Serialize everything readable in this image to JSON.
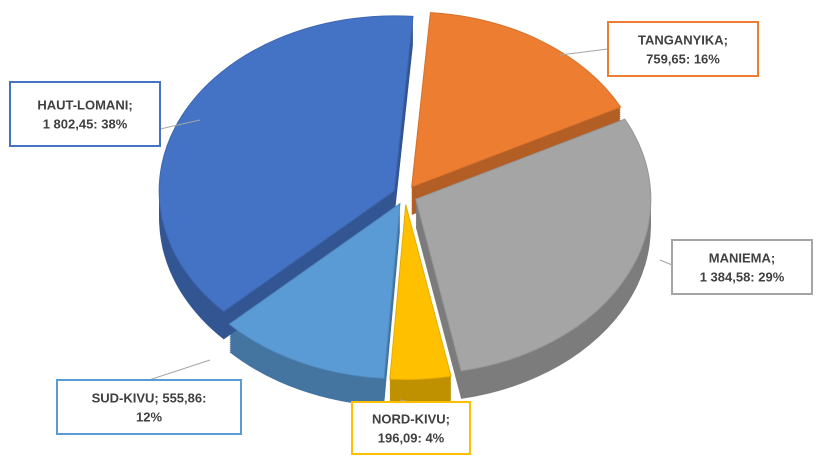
{
  "chart_data": {
    "type": "pie",
    "values": [
      759.65,
      1384.58,
      196.09,
      555.86,
      1802.45
    ],
    "value_labels": [
      [
        "TANGANYIKA;",
        "759,65: 16%"
      ],
      [
        "MANIEMA;",
        "1 384,58: 29%"
      ],
      [
        "NORD-KIVU;",
        "196,09: 4%"
      ],
      [
        "SUD-KIVU; 555,86:",
        "12%"
      ],
      [
        "HAUT-LOMANI;",
        "1 802,45: 38%"
      ]
    ],
    "colors": [
      "#ed7d31",
      "#a5a5a5",
      "#ffc000",
      "#5b9bd5",
      "#4472c4"
    ]
  }
}
